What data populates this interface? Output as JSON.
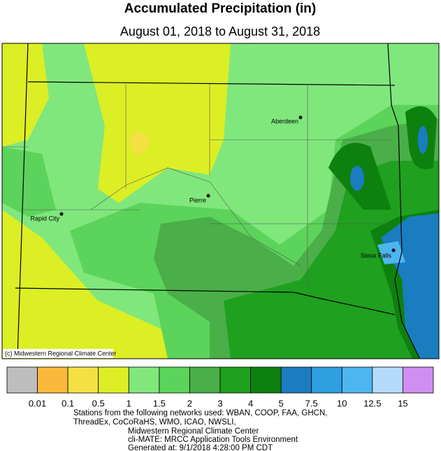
{
  "header": {
    "title": "Accumulated Precipitation (in)",
    "subtitle": "August 01, 2018 to August 31, 2018"
  },
  "map": {
    "cities": [
      {
        "label": "Aberdeen"
      },
      {
        "label": "Pierre"
      },
      {
        "label": "Rapid City"
      },
      {
        "label": "Sioux Falls"
      }
    ],
    "credit": "(c) Midwestern Regional Climate Center"
  },
  "legend": {
    "colors": [
      "#bebebe",
      "#fbb93c",
      "#f5e043",
      "#dcef25",
      "#80e77c",
      "#5cd35a",
      "#4aaf48",
      "#1fa01f",
      "#0e800e",
      "#1a7dbf",
      "#2f9fe0",
      "#4db6ef",
      "#b4dcfa",
      "#d08ef2"
    ],
    "labels": [
      "0.01",
      "0.1",
      "0.5",
      "1",
      "1.5",
      "2",
      "3",
      "4",
      "5",
      "7.5",
      "10",
      "12.5",
      "15"
    ]
  },
  "footer": {
    "lines": [
      "Stations from the following networks used: WBAN, COOP, FAA, GHCN,",
      "ThreadEx, CoCoRaHS, WMO, ICAO, NWSLI,",
      "Midwestern Regional Climate Center",
      "cli-MATE: MRCC Application Tools Environment",
      "Generated at: 9/1/2018 4:28:00 PM CDT"
    ]
  }
}
